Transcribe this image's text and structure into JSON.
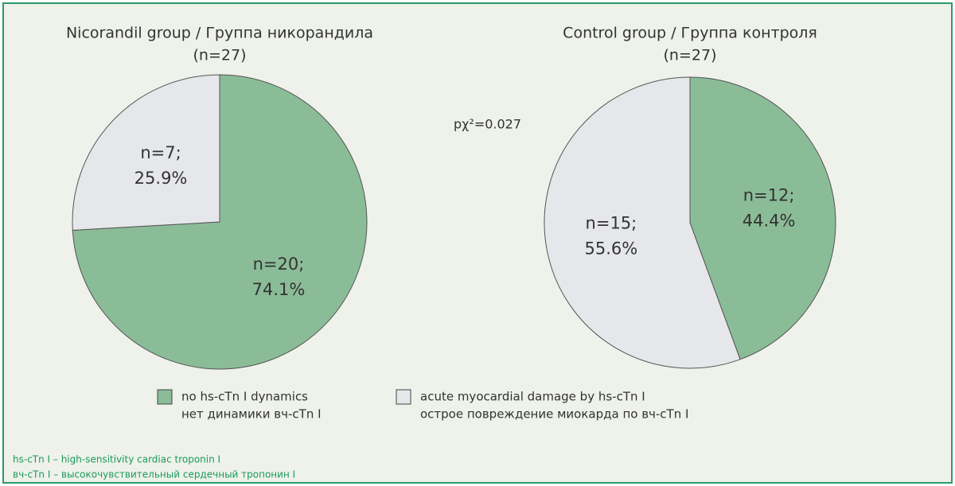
{
  "chart_data": [
    {
      "type": "pie",
      "title": "Nicorandil group / Группа никорандила",
      "subtitle": "(n=27)",
      "values": [
        74.1,
        25.9
      ],
      "value_labels": [
        [
          "n=20;",
          "74.1%"
        ],
        [
          "n=7;",
          "25.9%"
        ]
      ],
      "colors": [
        "#8bbc98",
        "#e6e7eb"
      ]
    },
    {
      "type": "pie",
      "title": "Control group / Группа контроля",
      "subtitle": "(n=27)",
      "values": [
        44.4,
        55.6
      ],
      "value_labels": [
        [
          "n=12;",
          "44.4%"
        ],
        [
          "n=15;",
          "55.6%"
        ]
      ],
      "colors": [
        "#8bbc98",
        "#e6e7eb"
      ]
    }
  ],
  "annotation": "pχ²=0.027",
  "legend": [
    {
      "lines": [
        "no hs-cTn I dynamics",
        "нет динамики вч-cTn I"
      ],
      "color": "#8bbc98"
    },
    {
      "lines": [
        "acute myocardial damage by hs-cTn I",
        "острое повреждение миокарда по вч-cTn I"
      ],
      "color": "#e6e7eb"
    }
  ],
  "footnotes": [
    "hs-cTn I – high-sensitivity cardiac troponin I",
    "вч-cTn I – высокочувствительный сердечный тропонин I"
  ]
}
